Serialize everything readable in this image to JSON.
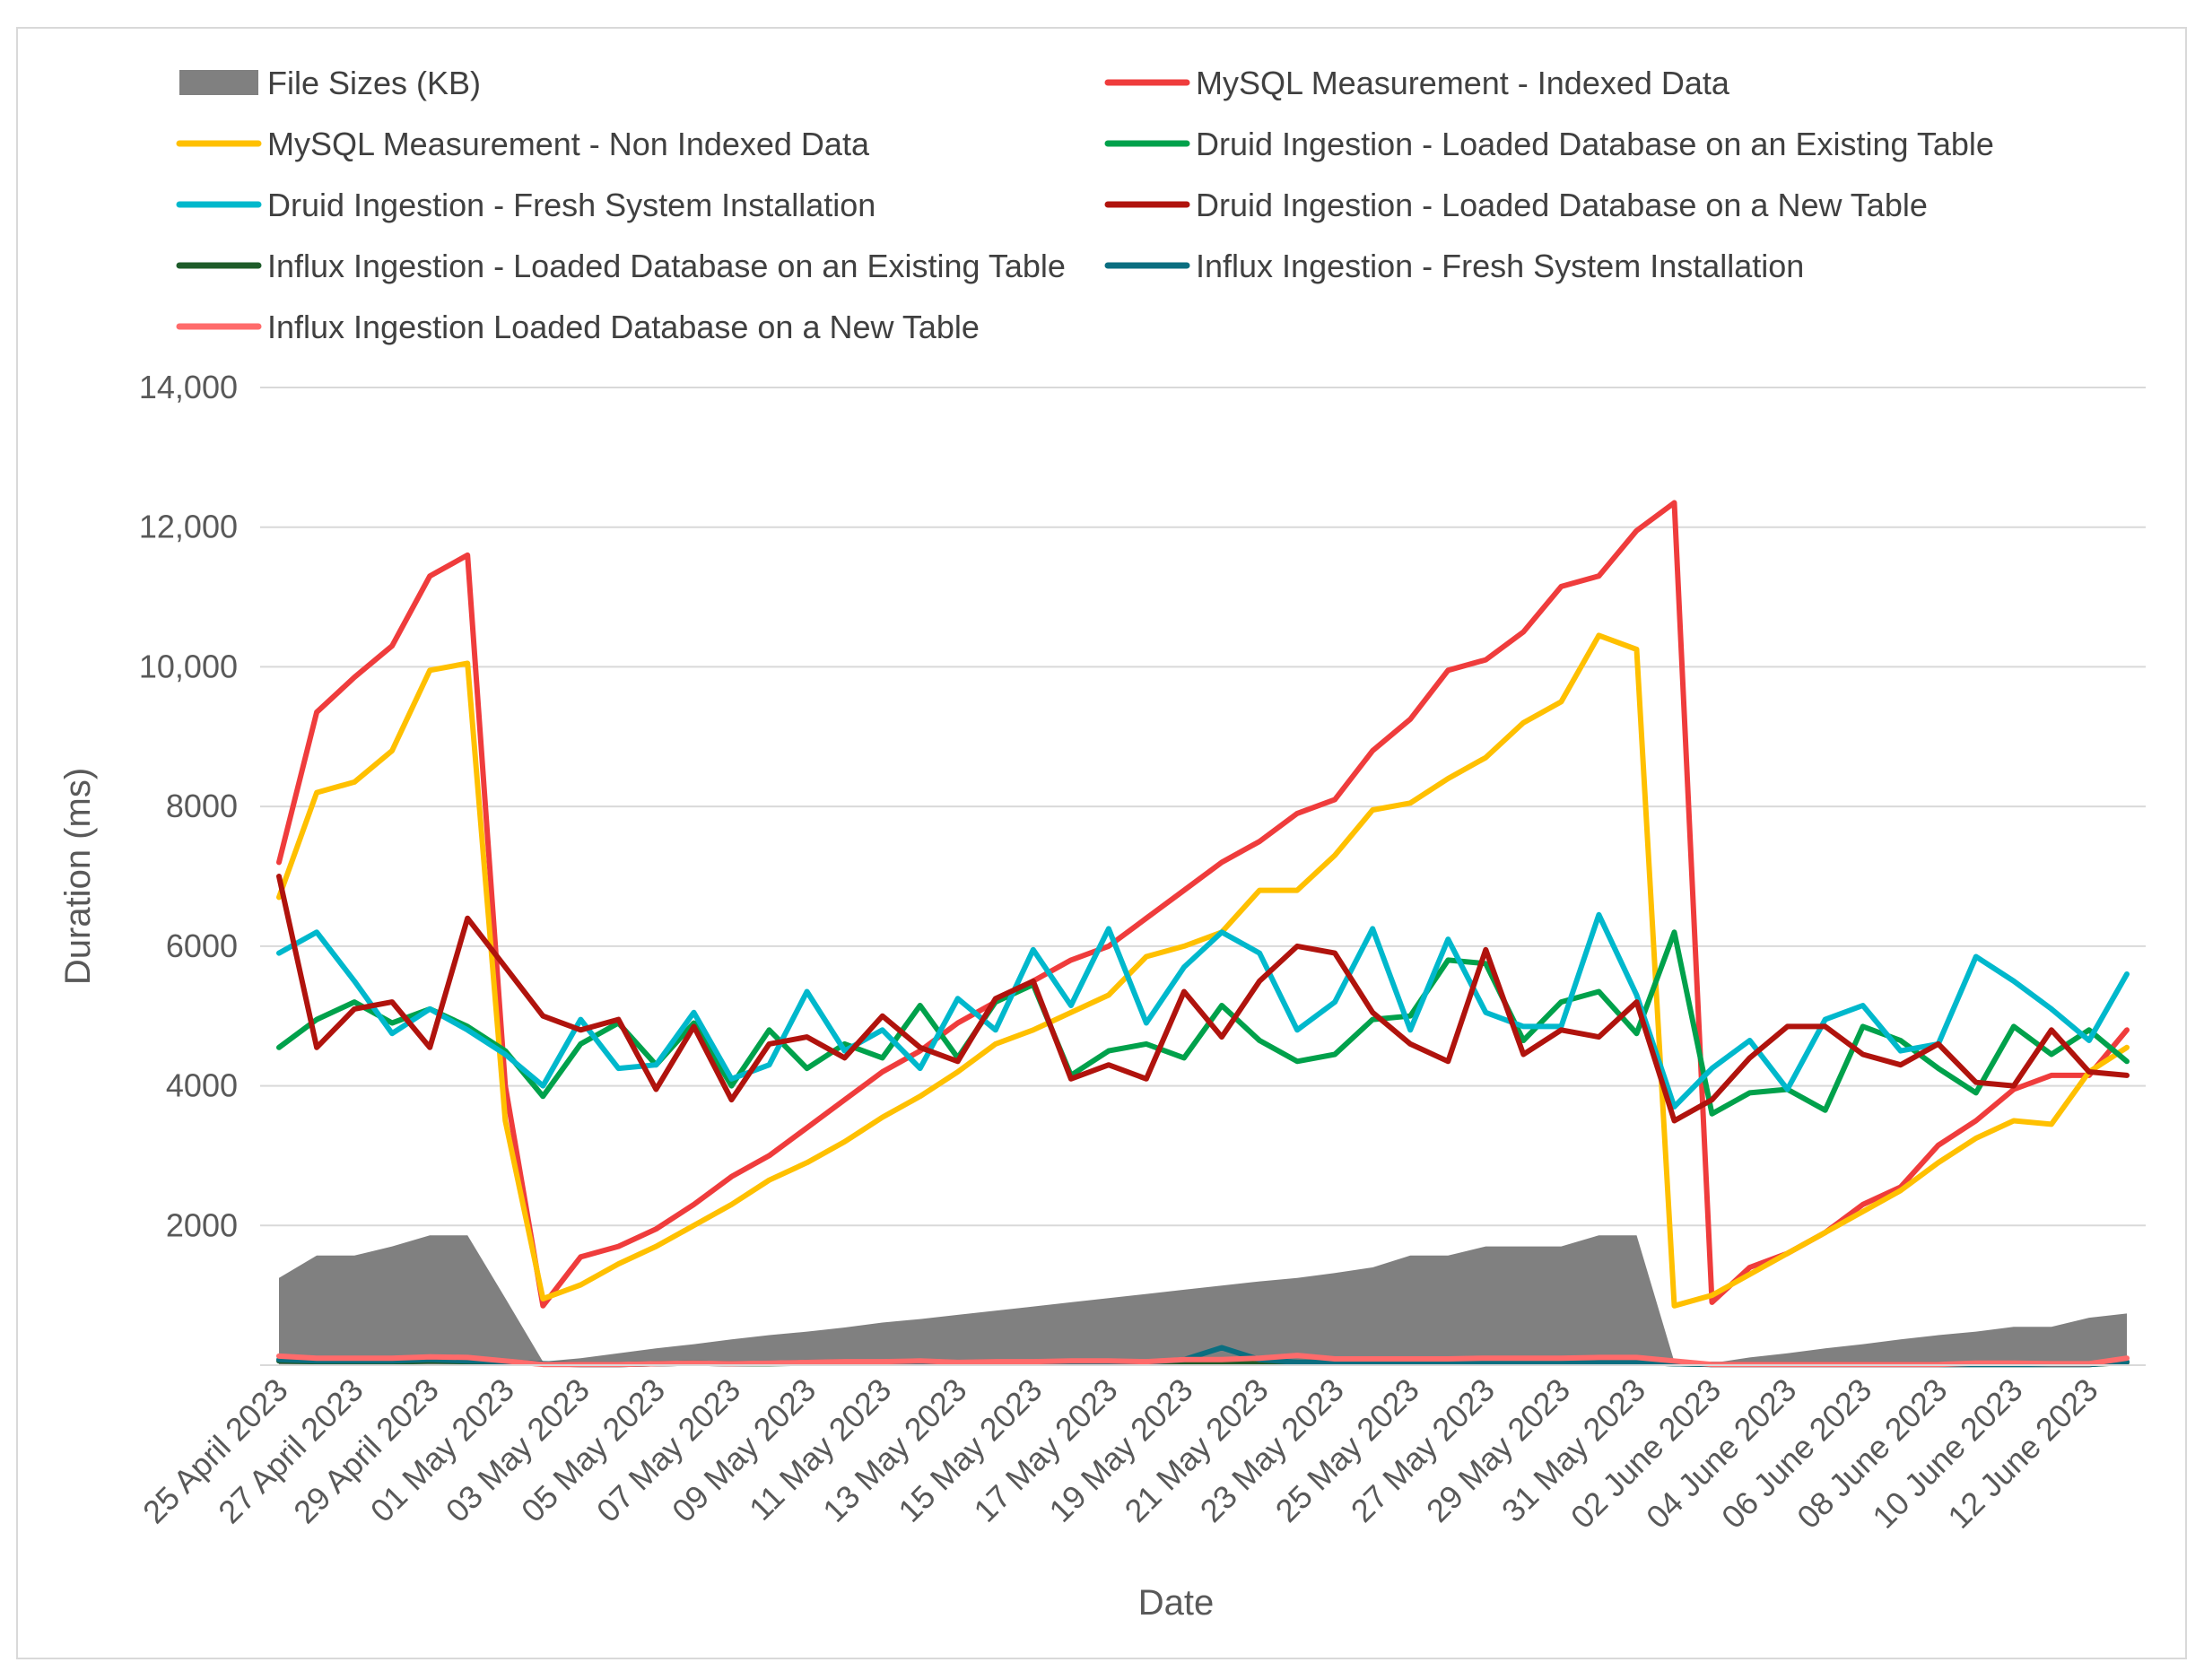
{
  "chart_data": {
    "type": "line",
    "title": "",
    "xlabel": "Date",
    "ylabel": "Duration (ms)",
    "ylim": [
      0,
      14000
    ],
    "yticks": [
      {
        "value": 2000,
        "label": "2000"
      },
      {
        "value": 4000,
        "label": "4000"
      },
      {
        "value": 6000,
        "label": "6000"
      },
      {
        "value": 8000,
        "label": "8000"
      },
      {
        "value": 10000,
        "label": "10,000"
      },
      {
        "value": 12000,
        "label": "12,000"
      },
      {
        "value": 14000,
        "label": "14,000"
      }
    ],
    "x_tick_labels": [
      "25 April 2023",
      "27 April 2023",
      "29 April 2023",
      "01 May 2023",
      "03 May 2023",
      "05 May 2023",
      "07 May 2023",
      "09 May 2023",
      "11 May 2023",
      "13 May 2023",
      "15 May 2023",
      "17 May 2023",
      "19 May 2023",
      "21 May 2023",
      "23 May 2023",
      "25 May 2023",
      "27 May 2023",
      "29 May 2023",
      "31 May 2023",
      "02 June 2023",
      "04 June 2023",
      "06 June 2023",
      "08 June 2023",
      "10 June 2023",
      "12 June 2023"
    ],
    "grid": true,
    "legend_position": "top",
    "series": [
      {
        "name": "File Sizes (KB)",
        "kind": "area",
        "color": "#808080",
        "values": [
          1250,
          1570,
          1570,
          1700,
          1860,
          1860,
          960,
          50,
          100,
          170,
          240,
          300,
          370,
          430,
          480,
          540,
          610,
          660,
          720,
          780,
          840,
          900,
          960,
          1020,
          1080,
          1140,
          1200,
          1250,
          1320,
          1400,
          1570,
          1570,
          1700,
          1700,
          1700,
          1860,
          1860,
          50,
          30,
          110,
          170,
          240,
          300,
          370,
          430,
          480,
          550,
          550,
          680,
          740
        ]
      },
      {
        "name": "MySQL Measurement - Indexed Data",
        "kind": "line",
        "color": "#ef3c3c",
        "values": [
          7200,
          9350,
          9850,
          10300,
          11300,
          11600,
          4000,
          850,
          1550,
          1700,
          1950,
          2300,
          2700,
          3000,
          3400,
          3800,
          4200,
          4500,
          4900,
          5200,
          5500,
          5800,
          6000,
          6400,
          6800,
          7200,
          7500,
          7900,
          8100,
          8800,
          9250,
          9950,
          10100,
          10500,
          11150,
          11300,
          11950,
          12350,
          900,
          1400,
          1600,
          1900,
          2300,
          2550,
          3150,
          3500,
          3950,
          4150,
          4150,
          4800
        ]
      },
      {
        "name": "MySQL Measurement - Non Indexed Data",
        "kind": "line",
        "color": "#ffc000",
        "values": [
          6700,
          8200,
          8350,
          8800,
          9950,
          10050,
          3500,
          950,
          1150,
          1450,
          1700,
          2000,
          2300,
          2650,
          2900,
          3200,
          3550,
          3850,
          4200,
          4600,
          4800,
          5050,
          5300,
          5850,
          6000,
          6200,
          6800,
          6800,
          7300,
          7950,
          8050,
          8400,
          8700,
          9200,
          9500,
          10450,
          10250,
          850,
          1000,
          1300,
          1600,
          1900,
          2200,
          2500,
          2900,
          3250,
          3500,
          3450,
          4200,
          4550
        ]
      },
      {
        "name": "Druid Ingestion - Loaded Database on an Existing Table",
        "kind": "line",
        "color": "#00a14b",
        "values": [
          4550,
          4950,
          5200,
          4900,
          5100,
          4850,
          4500,
          3850,
          4600,
          4900,
          4300,
          4900,
          4000,
          4800,
          4250,
          4600,
          4400,
          5150,
          4400,
          5200,
          5450,
          4150,
          4500,
          4600,
          4400,
          5150,
          4650,
          4350,
          4450,
          4950,
          5000,
          5800,
          5750,
          4650,
          5200,
          5350,
          4750,
          6200,
          3600,
          3900,
          3950,
          3650,
          4850,
          4650,
          4250,
          3900,
          4850,
          4450,
          4800,
          4350
        ]
      },
      {
        "name": "Druid Ingestion - Fresh System Installation",
        "kind": "line",
        "color": "#00b8cc",
        "values": [
          5900,
          6200,
          5500,
          4750,
          5100,
          4800,
          4450,
          4000,
          4950,
          4250,
          4300,
          5050,
          4100,
          4300,
          5350,
          4500,
          4800,
          4250,
          5250,
          4800,
          5950,
          5150,
          6250,
          4900,
          5700,
          6200,
          5900,
          4800,
          5200,
          6250,
          4800,
          6100,
          5050,
          4850,
          4850,
          6450,
          5300,
          3700,
          4250,
          4650,
          3950,
          4950,
          5150,
          4500,
          4600,
          5850,
          5500,
          5100,
          4650,
          5600
        ]
      },
      {
        "name": "Druid Ingestion - Loaded Database on a New Table",
        "kind": "line",
        "color": "#b0130d",
        "values": [
          7000,
          4550,
          5100,
          5200,
          4550,
          6400,
          5700,
          5000,
          4800,
          4950,
          3950,
          4850,
          3800,
          4600,
          4700,
          4400,
          5000,
          4550,
          4350,
          5250,
          5500,
          4100,
          4300,
          4100,
          5350,
          4700,
          5500,
          6000,
          5900,
          5050,
          4600,
          4350,
          5950,
          4450,
          4800,
          4700,
          5200,
          3500,
          3800,
          4400,
          4850,
          4850,
          4450,
          4300,
          4600,
          4050,
          4000,
          4800,
          4200,
          4150
        ]
      },
      {
        "name": "Influx Ingestion - Loaded Database on an Existing Table",
        "kind": "line",
        "color": "#1e5c2a",
        "values": [
          60,
          50,
          50,
          40,
          60,
          50,
          40,
          20,
          10,
          10,
          20,
          30,
          20,
          20,
          30,
          40,
          40,
          40,
          30,
          40,
          40,
          40,
          40,
          30,
          50,
          40,
          50,
          40,
          40,
          40,
          40,
          40,
          40,
          40,
          40,
          40,
          40,
          20,
          10,
          10,
          10,
          10,
          10,
          10,
          10,
          10,
          10,
          10,
          10,
          40
        ]
      },
      {
        "name": "Influx Ingestion - Fresh System Installation",
        "kind": "line",
        "color": "#0b6e80",
        "values": [
          80,
          60,
          60,
          60,
          80,
          60,
          50,
          20,
          10,
          10,
          20,
          30,
          20,
          30,
          40,
          40,
          40,
          40,
          30,
          40,
          40,
          50,
          50,
          40,
          80,
          250,
          80,
          40,
          40,
          40,
          40,
          40,
          40,
          40,
          40,
          40,
          40,
          20,
          10,
          10,
          10,
          10,
          10,
          10,
          10,
          10,
          10,
          10,
          10,
          50
        ]
      },
      {
        "name": "Influx Ingestion Loaded Database on a New Table",
        "kind": "line",
        "color": "#ff6b6b",
        "values": [
          130,
          100,
          100,
          100,
          120,
          110,
          60,
          10,
          10,
          10,
          20,
          30,
          20,
          30,
          40,
          50,
          50,
          60,
          40,
          50,
          50,
          60,
          60,
          50,
          80,
          80,
          100,
          140,
          90,
          90,
          90,
          90,
          100,
          100,
          100,
          110,
          110,
          60,
          10,
          10,
          10,
          10,
          10,
          10,
          10,
          30,
          30,
          20,
          20,
          100
        ]
      }
    ]
  }
}
